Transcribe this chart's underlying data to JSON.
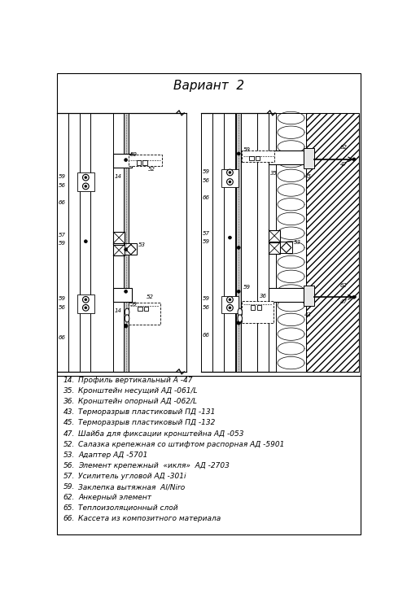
{
  "title": "Вариант  2",
  "legend": [
    [
      "14.",
      "Профиль вертикальный А -47"
    ],
    [
      "35.",
      "Кронштейн несущий АД -061/L"
    ],
    [
      "36.",
      "Кронштейн опорный АД -062/L"
    ],
    [
      "43.",
      "Терморазрыв пластиковый ПД -131"
    ],
    [
      "45.",
      "Терморазрыв пластиковый ПД -132"
    ],
    [
      "47.",
      "Шайба для фиксации кронштейна АД -053"
    ],
    [
      "52.",
      "Салазка крепежная со штифтом распорная АД -5901"
    ],
    [
      "53.",
      "Адаптер АД -5701"
    ],
    [
      "56.",
      "Элемент крепежный  «икля»  АД -2703"
    ],
    [
      "57.",
      "Усилитель угловой АД -301i"
    ],
    [
      "59.",
      "Заклепка вытяжная  Al/Niro"
    ],
    [
      "62.",
      "Анкерный элемент"
    ],
    [
      "65.",
      "Теплоизоляционный слой"
    ],
    [
      "66.",
      "Кассета из композитного материала"
    ]
  ],
  "bg_color": "#ffffff"
}
